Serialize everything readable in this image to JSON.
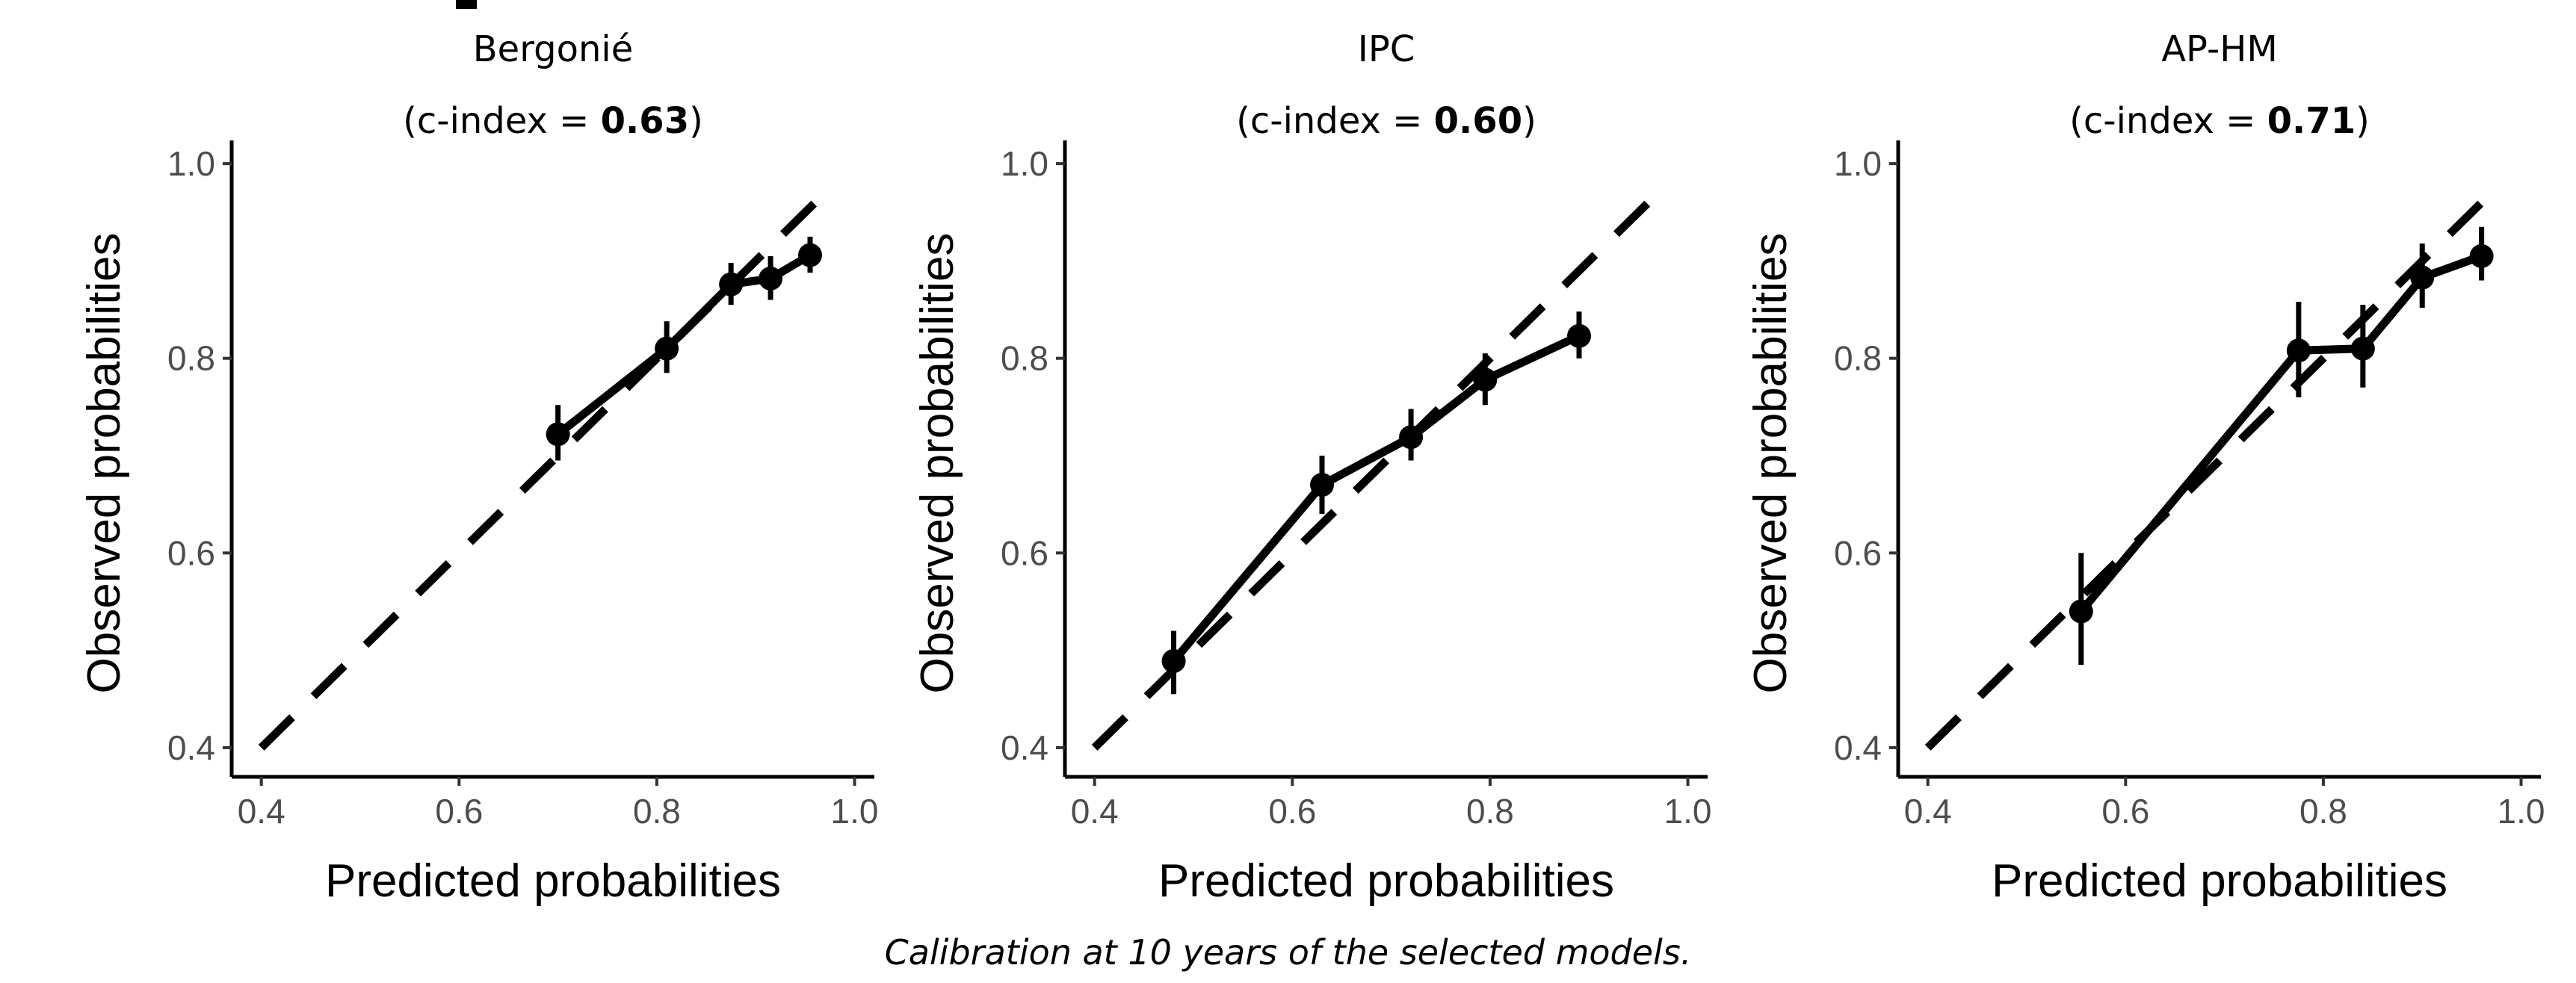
{
  "caption": "Calibration at 10 years of the selected models.",
  "chart_data": [
    {
      "type": "line",
      "title": "Bergonié",
      "subtitle_prefix": "(c-index = ",
      "subtitle_value": "0.63",
      "subtitle_suffix": ")",
      "xlabel": "Predicted probabilities",
      "ylabel": "Observed probabilities",
      "xlim": [
        0.37,
        1.02
      ],
      "ylim": [
        0.37,
        1.03
      ],
      "x_ticks": [
        "0.4",
        "0.6",
        "0.8",
        "1.0"
      ],
      "y_ticks": [
        "0.4",
        "0.6",
        "0.8",
        "1.0"
      ],
      "reference_line": "y = x (dashed)",
      "grid": false,
      "x": [
        0.7,
        0.81,
        0.875,
        0.915,
        0.955
      ],
      "y": [
        0.722,
        0.81,
        0.876,
        0.882,
        0.906
      ],
      "ci_low": [
        0.695,
        0.785,
        0.855,
        0.86,
        0.888
      ],
      "ci_high": [
        0.752,
        0.838,
        0.898,
        0.905,
        0.925
      ]
    },
    {
      "type": "line",
      "title": "IPC",
      "subtitle_prefix": "(c-index = ",
      "subtitle_value": "0.60",
      "subtitle_suffix": ")",
      "xlabel": "Predicted probabilities",
      "ylabel": "Observed probabilities",
      "xlim": [
        0.37,
        1.02
      ],
      "ylim": [
        0.37,
        1.03
      ],
      "x_ticks": [
        "0.4",
        "0.6",
        "0.8",
        "1.0"
      ],
      "y_ticks": [
        "0.4",
        "0.6",
        "0.8",
        "1.0"
      ],
      "reference_line": "y = x (dashed)",
      "grid": false,
      "x": [
        0.48,
        0.63,
        0.72,
        0.795,
        0.89
      ],
      "y": [
        0.489,
        0.67,
        0.719,
        0.778,
        0.823
      ],
      "ci_low": [
        0.455,
        0.64,
        0.695,
        0.752,
        0.8
      ],
      "ci_high": [
        0.52,
        0.7,
        0.748,
        0.805,
        0.848
      ]
    },
    {
      "type": "line",
      "title": "AP-HM",
      "subtitle_prefix": "(c-index = ",
      "subtitle_value": "0.71",
      "subtitle_suffix": ")",
      "xlabel": "Predicted probabilities",
      "ylabel": "Observed probabilities",
      "xlim": [
        0.37,
        1.02
      ],
      "ylim": [
        0.37,
        1.03
      ],
      "x_ticks": [
        "0.4",
        "0.6",
        "0.8",
        "1.0"
      ],
      "y_ticks": [
        "0.4",
        "0.6",
        "0.8",
        "1.0"
      ],
      "reference_line": "y = x (dashed)",
      "grid": false,
      "x": [
        0.555,
        0.775,
        0.84,
        0.9,
        0.96
      ],
      "y": [
        0.54,
        0.808,
        0.81,
        0.883,
        0.905
      ],
      "ci_low": [
        0.485,
        0.76,
        0.77,
        0.852,
        0.88
      ],
      "ci_high": [
        0.6,
        0.858,
        0.855,
        0.918,
        0.935
      ]
    }
  ]
}
